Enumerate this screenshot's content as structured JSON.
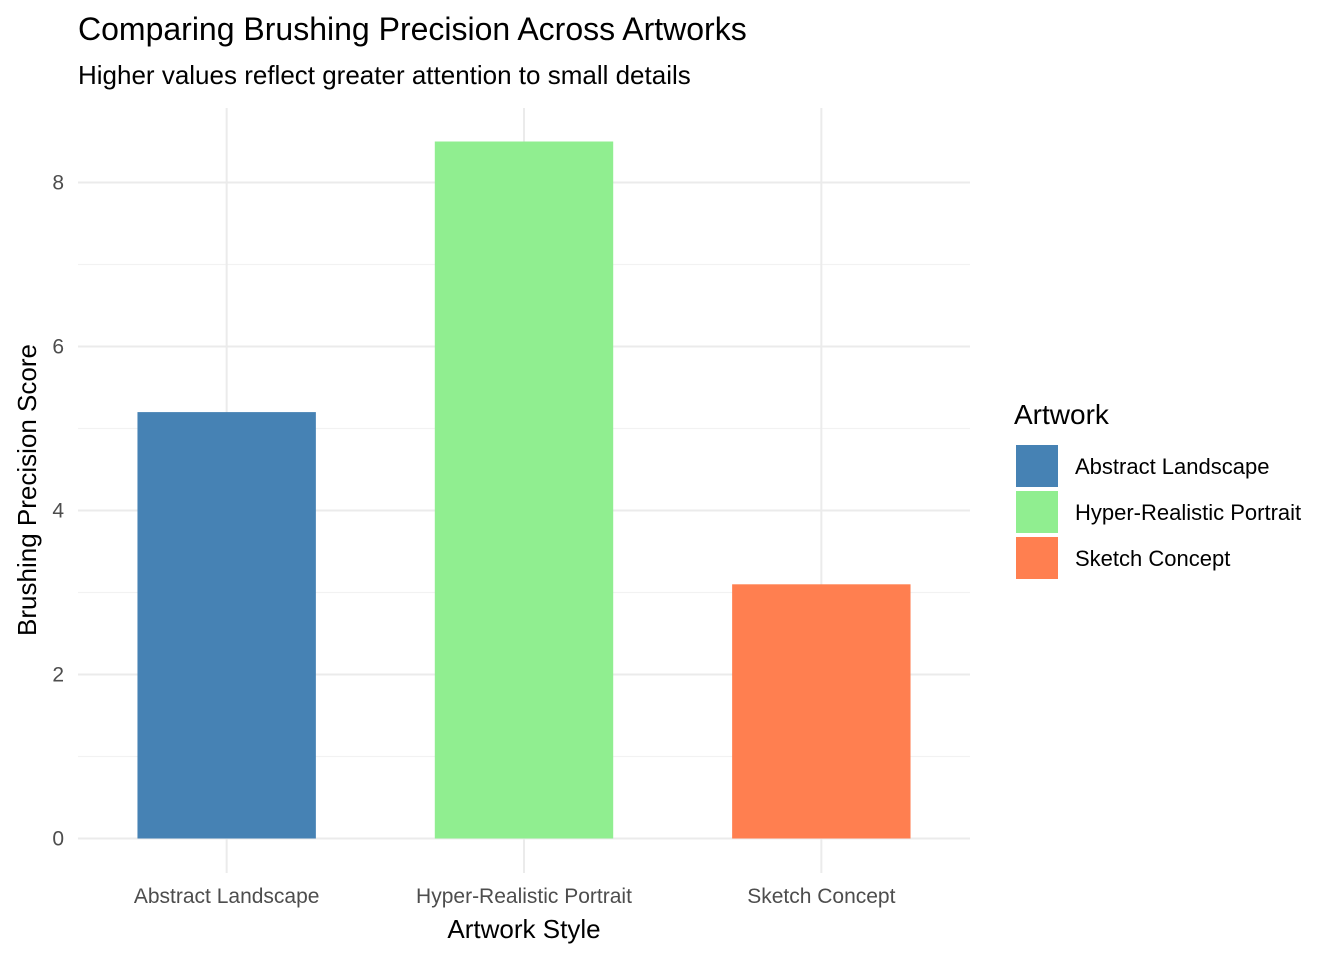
{
  "chart_data": {
    "type": "bar",
    "title": "Comparing Brushing Precision Across Artworks",
    "subtitle": "Higher values reflect greater attention to small details",
    "xlabel": "Artwork Style",
    "ylabel": "Brushing Precision Score",
    "categories": [
      "Abstract Landscape",
      "Hyper-Realistic Portrait",
      "Sketch Concept"
    ],
    "values": [
      5.2,
      8.5,
      3.1
    ],
    "colors": [
      "#4682B4",
      "#90EE90",
      "#FF7F50"
    ],
    "ylim": [
      0,
      8.9
    ],
    "yticks": [
      0,
      2,
      4,
      6,
      8
    ],
    "grid": true,
    "legend": {
      "title": "Artwork",
      "placement": "right",
      "entries": [
        "Abstract Landscape",
        "Hyper-Realistic Portrait",
        "Sketch Concept"
      ]
    }
  }
}
